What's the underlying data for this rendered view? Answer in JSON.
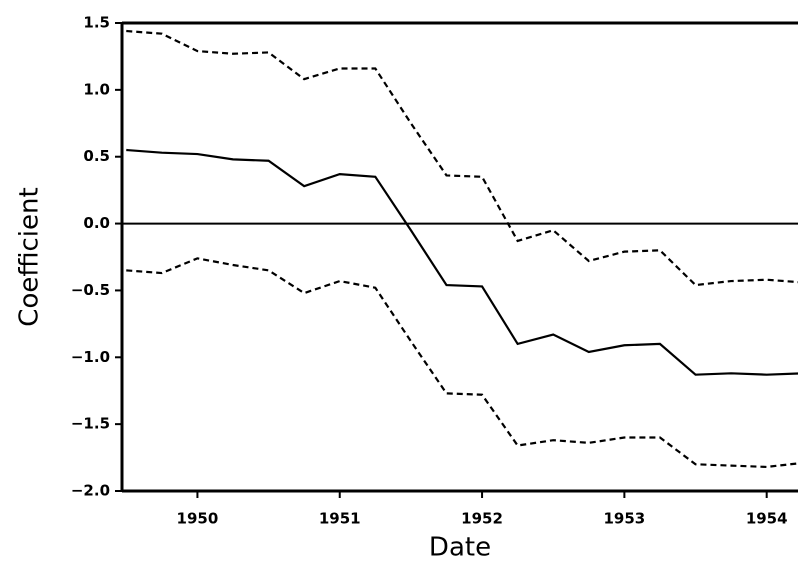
{
  "chart_data": {
    "type": "line",
    "x_label": "Date",
    "y_label": "Coefficient",
    "x": [
      1949.5,
      1949.75,
      1950,
      1950.25,
      1950.5,
      1950.75,
      1951,
      1951.25,
      1951.5,
      1951.75,
      1952,
      1952.25,
      1952.5,
      1952.75,
      1953,
      1953.25,
      1953.5,
      1953.75,
      1954,
      1954.25
    ],
    "series": [
      {
        "color": "#000000",
        "style": "solid",
        "values": [
          0.55,
          0.53,
          0.52,
          0.48,
          0.47,
          0.28,
          0.37,
          0.35,
          -0.05,
          -0.46,
          -0.47,
          -0.9,
          -0.83,
          -0.96,
          -0.91,
          -0.9,
          -1.13,
          -1.12,
          -1.13,
          -1.12
        ]
      },
      {
        "color": "#000000",
        "style": "dashed",
        "values": [
          1.44,
          1.42,
          1.29,
          1.27,
          1.28,
          1.08,
          1.16,
          1.16,
          0.75,
          0.36,
          0.35,
          -0.13,
          -0.05,
          -0.28,
          -0.21,
          -0.2,
          -0.46,
          -0.43,
          -0.42,
          -0.44
        ]
      },
      {
        "color": "#000000",
        "style": "dashed",
        "values": [
          -0.35,
          -0.37,
          -0.26,
          -0.31,
          -0.35,
          -0.52,
          -0.43,
          -0.48,
          -0.88,
          -1.27,
          -1.28,
          -1.66,
          -1.62,
          -1.64,
          -1.6,
          -1.6,
          -1.8,
          -1.81,
          -1.82,
          -1.79
        ]
      }
    ],
    "hlines": [
      0
    ],
    "xlim": [
      1949.47,
      1954.22
    ],
    "xticks": [
      1950,
      1951,
      1952,
      1953,
      1954
    ],
    "ylim": [
      -2.0,
      1.5
    ],
    "yticks": [
      {
        "value": -2.0,
        "label": "−2.0"
      },
      {
        "value": -1.5,
        "label": "−1.5"
      },
      {
        "value": -1.0,
        "label": "−1.0"
      },
      {
        "value": -0.5,
        "label": "−0.5"
      },
      {
        "value": 0.0,
        "label": "0.0"
      },
      0.5,
      {
        "value": 1.0,
        "label": "1.0"
      },
      1.5
    ],
    "grid": false
  }
}
